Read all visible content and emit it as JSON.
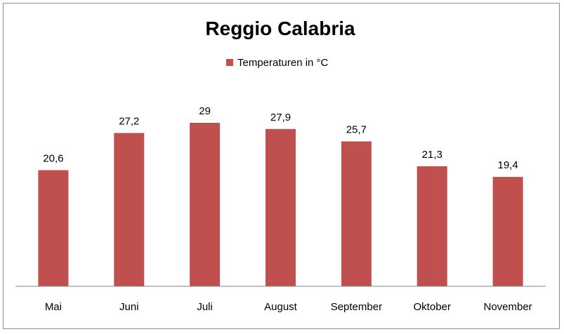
{
  "chart_data": {
    "type": "bar",
    "title": "Reggio Calabria",
    "categories": [
      "Mai",
      "Juni",
      "Juli",
      "August",
      "September",
      "Oktober",
      "November"
    ],
    "series": [
      {
        "name": "Temperaturen  in °C",
        "values": [
          20.6,
          27.2,
          29,
          27.9,
          25.7,
          21.3,
          19.4
        ],
        "value_labels": [
          "20,6",
          "27,2",
          "29",
          "27,9",
          "25,7",
          "21,3",
          "19,4"
        ],
        "color": "#c0504d"
      }
    ],
    "xlabel": "",
    "ylabel": "",
    "ylim": [
      0,
      29
    ],
    "grid": false,
    "legend": "top-center",
    "y_axis_visible": false,
    "data_labels": true
  }
}
